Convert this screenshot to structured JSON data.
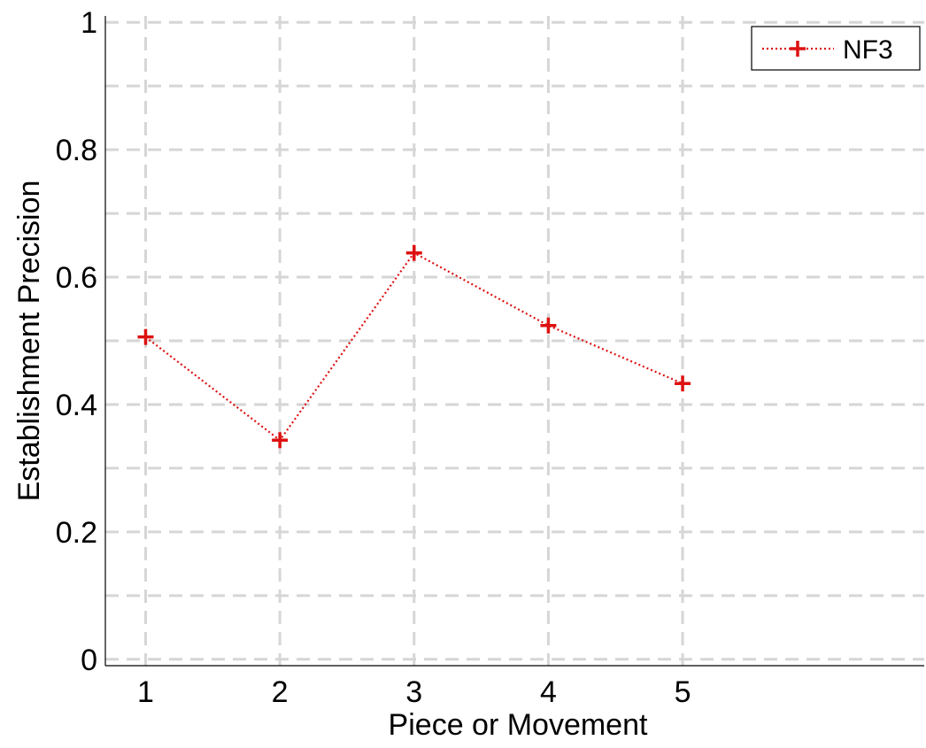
{
  "chart_data": {
    "type": "line",
    "xlabel": "Piece or Movement",
    "ylabel": "Establishment Precision",
    "x": [
      1,
      2,
      3,
      4,
      5
    ],
    "x_ticks": [
      "1",
      "2",
      "3",
      "4",
      "5"
    ],
    "y_ticks": [
      "0",
      "0.2",
      "0.4",
      "0.6",
      "0.8",
      "1"
    ],
    "xlim": [
      0.7,
      6.8
    ],
    "ylim": [
      -0.01,
      1.01
    ],
    "grid": true,
    "legend_position": "top-right",
    "series": [
      {
        "name": "NF3",
        "values": [
          0.506,
          0.344,
          0.638,
          0.524,
          0.433
        ],
        "color": "#dd1111",
        "line_style": "dotted",
        "marker": "plus"
      }
    ]
  }
}
